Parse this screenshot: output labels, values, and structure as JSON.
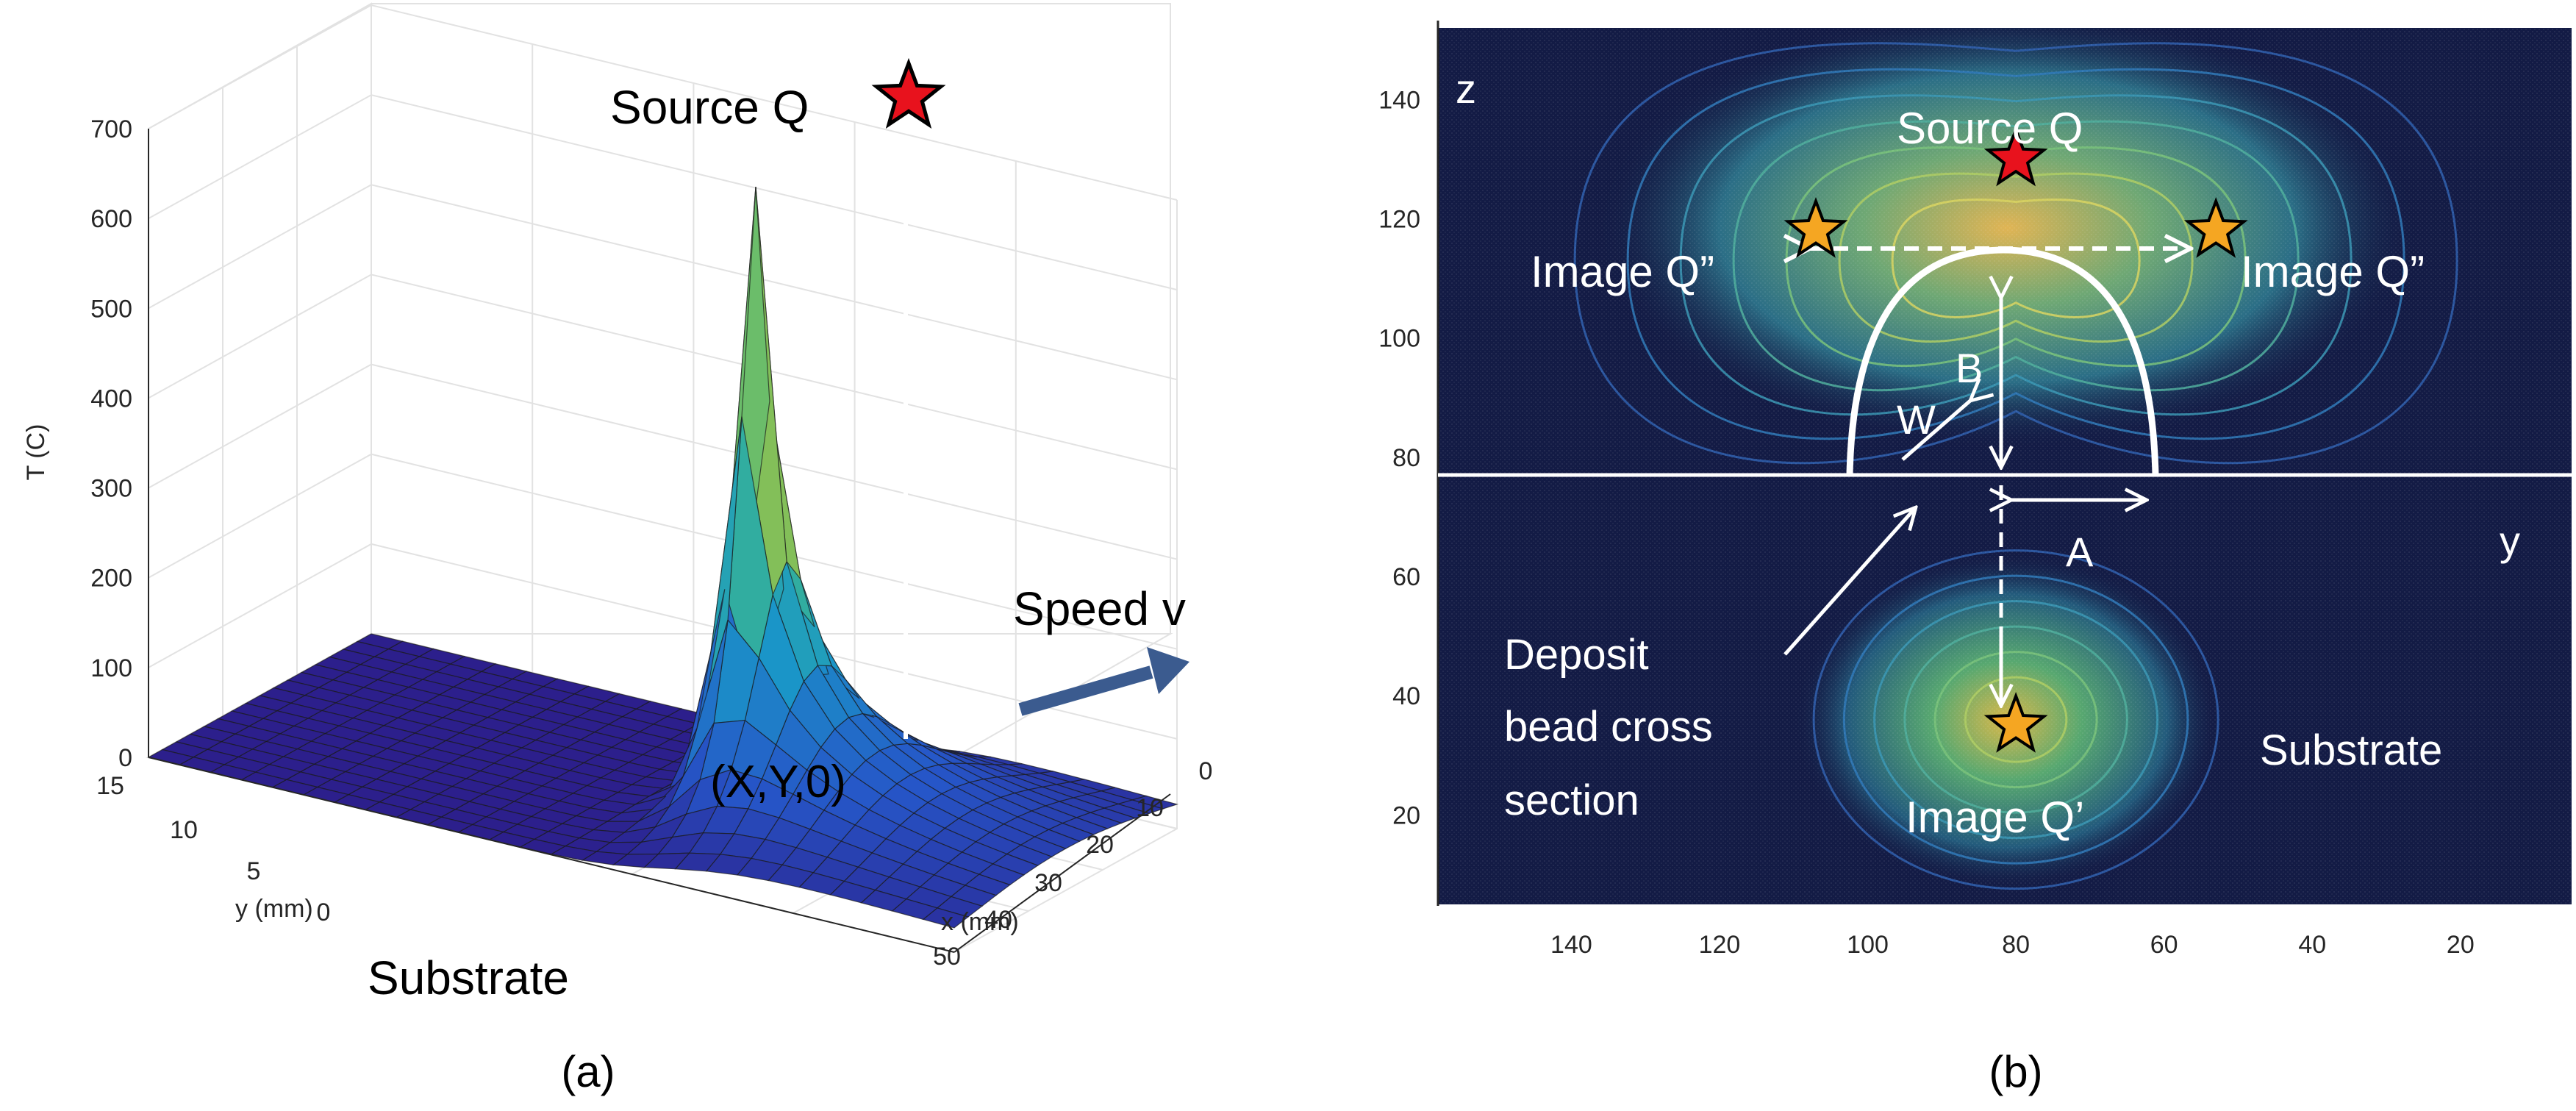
{
  "chart_data": [
    {
      "panel": "(a)",
      "type": "surface3d",
      "zlabel": "T (C)",
      "xlabel": "x (mm)",
      "ylabel": "y (mm)",
      "z_ticks": [
        0,
        100,
        200,
        300,
        400,
        500,
        600,
        700
      ],
      "x_ticks": [
        0,
        10,
        20,
        30,
        40,
        50
      ],
      "y_ticks": [
        0,
        5,
        10,
        15
      ],
      "zlim": [
        0,
        700
      ],
      "xlim": [
        0,
        50
      ],
      "ylim": [
        0,
        15
      ],
      "peak_temperature": 700,
      "annotations": {
        "source": "Source Q",
        "speed": "Speed v",
        "point": "(X,Y,0)",
        "substrate": "Substrate"
      },
      "caption": "(a)"
    },
    {
      "panel": "(b)",
      "type": "contour",
      "xlabel": "y",
      "ylabel": "z",
      "x_ticks": [
        140,
        120,
        100,
        80,
        60,
        40,
        20
      ],
      "y_ticks": [
        20,
        40,
        60,
        80,
        100,
        120,
        140
      ],
      "xlim": [
        158,
        5
      ],
      "ylim": [
        5,
        152
      ],
      "substrate_level": 80,
      "points": [
        {
          "name": "Source Q",
          "y": 80,
          "z": 130,
          "marker": "red-star"
        },
        {
          "name": "Image Q”",
          "y": 107,
          "z": 118,
          "marker": "orange-star"
        },
        {
          "name": "Image Q”",
          "y": 53,
          "z": 118,
          "marker": "orange-star"
        },
        {
          "name": "Image Q’",
          "y": 80,
          "z": 35,
          "marker": "orange-star"
        }
      ],
      "bead_top_z": 120,
      "annotations": {
        "source": "Source Q",
        "image_left": "Image Q”",
        "image_right": "Image Q”",
        "image_below": "Image Q’",
        "B": "B",
        "W": "W",
        "A": "A",
        "deposit": [
          "Deposit",
          "bead cross",
          "section"
        ],
        "substrate": "Substrate"
      },
      "caption": "(b)"
    }
  ],
  "colors": {
    "surface_low": "#2c1f8c",
    "surface_high": "#f9e21e",
    "contour_bg": "#131b45",
    "arrow": "#3b5b8f",
    "red_star": "#e8121d",
    "orange_star": "#f5a622"
  }
}
